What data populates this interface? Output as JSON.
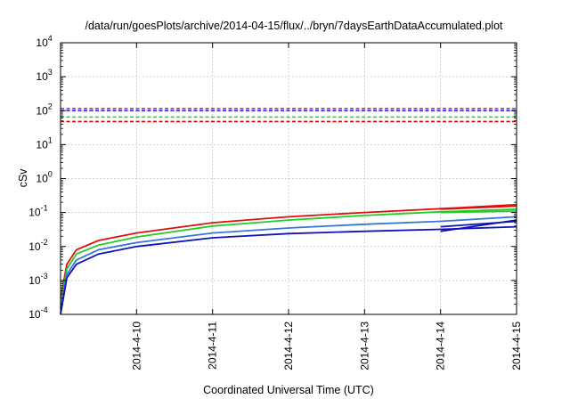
{
  "chart_data": {
    "type": "line",
    "title": "/data/run/goesPlots/archive/2014-04-15/flux/../bryn/7daysEarthDataAccumulated.plot",
    "xlabel": "Coordinated Universal Time (UTC)",
    "ylabel": "cSv",
    "yscale": "log",
    "ylim": [
      0.0001,
      10000
    ],
    "xlim": [
      "2014-04-09",
      "2014-04-15"
    ],
    "grid": true,
    "legend": "none",
    "x_ticks": [
      "2014-4-10",
      "2014-4-11",
      "2014-4-12",
      "2014-4-13",
      "2014-4-14",
      "2014-4-15"
    ],
    "y_ticks": [
      {
        "base": "10",
        "exp": "-4",
        "value": 0.0001
      },
      {
        "base": "10",
        "exp": "-3",
        "value": 0.001
      },
      {
        "base": "10",
        "exp": "-2",
        "value": 0.01
      },
      {
        "base": "10",
        "exp": "-1",
        "value": 0.1
      },
      {
        "base": "10",
        "exp": "0",
        "value": 1
      },
      {
        "base": "10",
        "exp": "1",
        "value": 10
      },
      {
        "base": "10",
        "exp": "2",
        "value": 100
      },
      {
        "base": "10",
        "exp": "3",
        "value": 1000
      },
      {
        "base": "10",
        "exp": "4",
        "value": 10000
      }
    ],
    "thresholds": [
      {
        "value": 115,
        "color": "#9933cc"
      },
      {
        "value": 100,
        "color": "#2222cc"
      },
      {
        "value": 65,
        "color": "#22cc22"
      },
      {
        "value": 48,
        "color": "#dd0000"
      }
    ],
    "series": [
      {
        "color": "#dd1111",
        "x": [
          "2014-04-09T00:00",
          "2014-04-09T02:00",
          "2014-04-09T05:00",
          "2014-04-09T12:00",
          "2014-04-10T00:00",
          "2014-04-11T00:00",
          "2014-04-12T00:00",
          "2014-04-13T00:00",
          "2014-04-14T00:00",
          "2014-04-15T00:00"
        ],
        "y": [
          0.0003,
          0.003,
          0.008,
          0.015,
          0.025,
          0.05,
          0.075,
          0.1,
          0.13,
          0.17
        ]
      },
      {
        "color": "#dd1111",
        "x": [
          "2014-04-14T00:00",
          "2014-04-15T00:00"
        ],
        "y": [
          0.125,
          0.155
        ]
      },
      {
        "color": "#22cc22",
        "x": [
          "2014-04-09T00:00",
          "2014-04-09T02:00",
          "2014-04-09T05:00",
          "2014-04-09T12:00",
          "2014-04-10T00:00",
          "2014-04-11T00:00",
          "2014-04-12T00:00",
          "2014-04-13T00:00",
          "2014-04-14T00:00",
          "2014-04-15T00:00"
        ],
        "y": [
          0.0002,
          0.0022,
          0.006,
          0.011,
          0.019,
          0.04,
          0.06,
          0.082,
          0.105,
          0.125
        ]
      },
      {
        "color": "#22cc22",
        "x": [
          "2014-04-14T00:00",
          "2014-04-15T00:00"
        ],
        "y": [
          0.1,
          0.11
        ]
      },
      {
        "color": "#3377dd",
        "x": [
          "2014-04-09T00:00",
          "2014-04-09T02:00",
          "2014-04-09T05:00",
          "2014-04-09T12:00",
          "2014-04-10T00:00",
          "2014-04-11T00:00",
          "2014-04-12T00:00",
          "2014-04-13T00:00",
          "2014-04-14T00:00",
          "2014-04-15T00:00"
        ],
        "y": [
          0.00015,
          0.0015,
          0.004,
          0.008,
          0.013,
          0.025,
          0.035,
          0.045,
          0.055,
          0.075
        ]
      },
      {
        "color": "#1111bb",
        "x": [
          "2014-04-09T00:00",
          "2014-04-09T02:00",
          "2014-04-09T05:00",
          "2014-04-09T12:00",
          "2014-04-10T00:00",
          "2014-04-11T00:00",
          "2014-04-12T00:00",
          "2014-04-13T00:00",
          "2014-04-14T00:00",
          "2014-04-15T00:00"
        ],
        "y": [
          0.0001,
          0.0012,
          0.003,
          0.006,
          0.01,
          0.018,
          0.024,
          0.028,
          0.032,
          0.038
        ]
      },
      {
        "color": "#1111bb",
        "x": [
          "2014-04-14T00:00",
          "2014-04-15T00:00"
        ],
        "y": [
          0.028,
          0.06
        ]
      },
      {
        "color": "#1111bb",
        "x": [
          "2014-04-14T00:00",
          "2014-04-15T00:00"
        ],
        "y": [
          0.038,
          0.055
        ]
      }
    ]
  }
}
